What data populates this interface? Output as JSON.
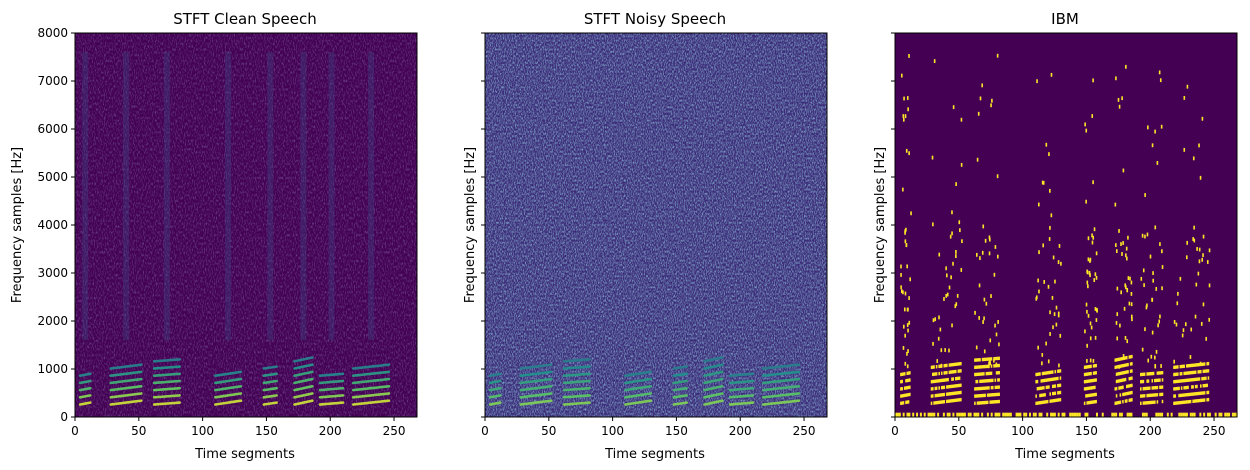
{
  "chart_data": [
    {
      "type": "heatmap",
      "title": "STFT Clean Speech",
      "xlabel": "Time segments",
      "ylabel": "Frequency samples [Hz]",
      "xlim": [
        0,
        268
      ],
      "ylim": [
        0,
        8000
      ],
      "xticks": [
        0,
        50,
        100,
        150,
        200,
        250
      ],
      "yticks": [
        0,
        1000,
        2000,
        3000,
        4000,
        5000,
        6000,
        7000,
        8000
      ],
      "show_ytick_labels": true,
      "colormap": "viridis",
      "background_color": "#440154",
      "speech_segments_x": [
        [
          4,
          12
        ],
        [
          28,
          52
        ],
        [
          62,
          82
        ],
        [
          110,
          130
        ],
        [
          148,
          158
        ],
        [
          172,
          186
        ],
        [
          192,
          210
        ],
        [
          218,
          246
        ]
      ],
      "noise_level": "low"
    },
    {
      "type": "heatmap",
      "title": "STFT Noisy Speech",
      "xlabel": "Time segments",
      "ylabel": "Frequency samples [Hz]",
      "xlim": [
        0,
        268
      ],
      "ylim": [
        0,
        8000
      ],
      "xticks": [
        0,
        50,
        100,
        150,
        200,
        250
      ],
      "yticks": [
        0,
        1000,
        2000,
        3000,
        4000,
        5000,
        6000,
        7000,
        8000
      ],
      "show_ytick_labels": false,
      "colormap": "viridis",
      "background_color": "#3b2a78",
      "speech_segments_x": [
        [
          4,
          12
        ],
        [
          28,
          52
        ],
        [
          62,
          82
        ],
        [
          110,
          130
        ],
        [
          148,
          158
        ],
        [
          172,
          186
        ],
        [
          192,
          210
        ],
        [
          218,
          246
        ]
      ],
      "noise_level": "high"
    },
    {
      "type": "heatmap",
      "title": "IBM",
      "xlabel": "Time segments",
      "ylabel": "Frequency samples [Hz]",
      "xlim": [
        0,
        268
      ],
      "ylim": [
        0,
        8000
      ],
      "xticks": [
        0,
        50,
        100,
        150,
        200,
        250
      ],
      "yticks": [
        0,
        1000,
        2000,
        3000,
        4000,
        5000,
        6000,
        7000,
        8000
      ],
      "show_ytick_labels": false,
      "colormap": "binary (viridis endpoints)",
      "background_color": "#440154",
      "mask_on_color": "#fde725",
      "speech_segments_x": [
        [
          4,
          12
        ],
        [
          28,
          52
        ],
        [
          62,
          82
        ],
        [
          110,
          130
        ],
        [
          148,
          158
        ],
        [
          172,
          186
        ],
        [
          192,
          210
        ],
        [
          218,
          246
        ]
      ],
      "mask_values": [
        0,
        1
      ]
    }
  ]
}
